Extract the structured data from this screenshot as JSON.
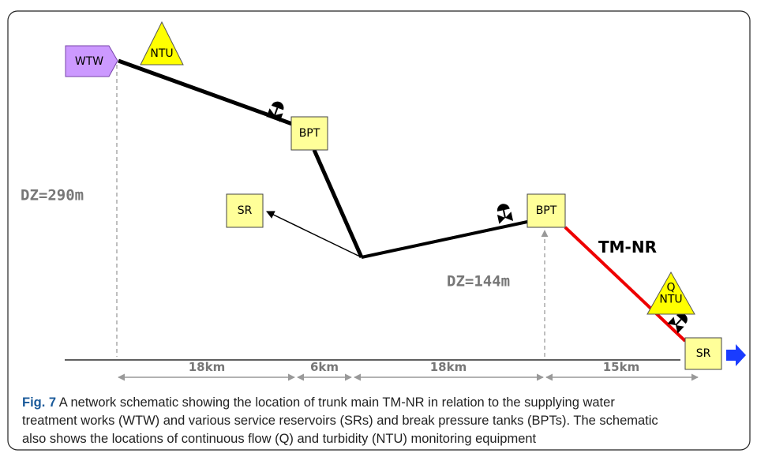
{
  "figure": {
    "nodes": [
      {
        "id": "wtw",
        "label": "WTW"
      },
      {
        "id": "ntu1",
        "label": "NTU"
      },
      {
        "id": "bpt1",
        "label": "BPT"
      },
      {
        "id": "sr1",
        "label": "SR"
      },
      {
        "id": "bpt2",
        "label": "BPT"
      },
      {
        "id": "qntu",
        "label": "Q\nNTU"
      },
      {
        "id": "sr2",
        "label": "SR"
      }
    ],
    "main_label": "TM-NR",
    "heights": [
      "DZ=290m",
      "DZ=144m"
    ],
    "distances": [
      "18km",
      "6km",
      "18km",
      "15km"
    ]
  },
  "caption": {
    "label": "Fig. 7",
    "lines": [
      "A network schematic showing the location of trunk main TM-NR in relation to the supplying water",
      "treatment works (WTW) and various service reservoirs (SRs) and break pressure tanks (BPTs). The schematic",
      "also shows the locations of continuous flow (Q) and turbidity (NTU) monitoring equipment"
    ]
  }
}
